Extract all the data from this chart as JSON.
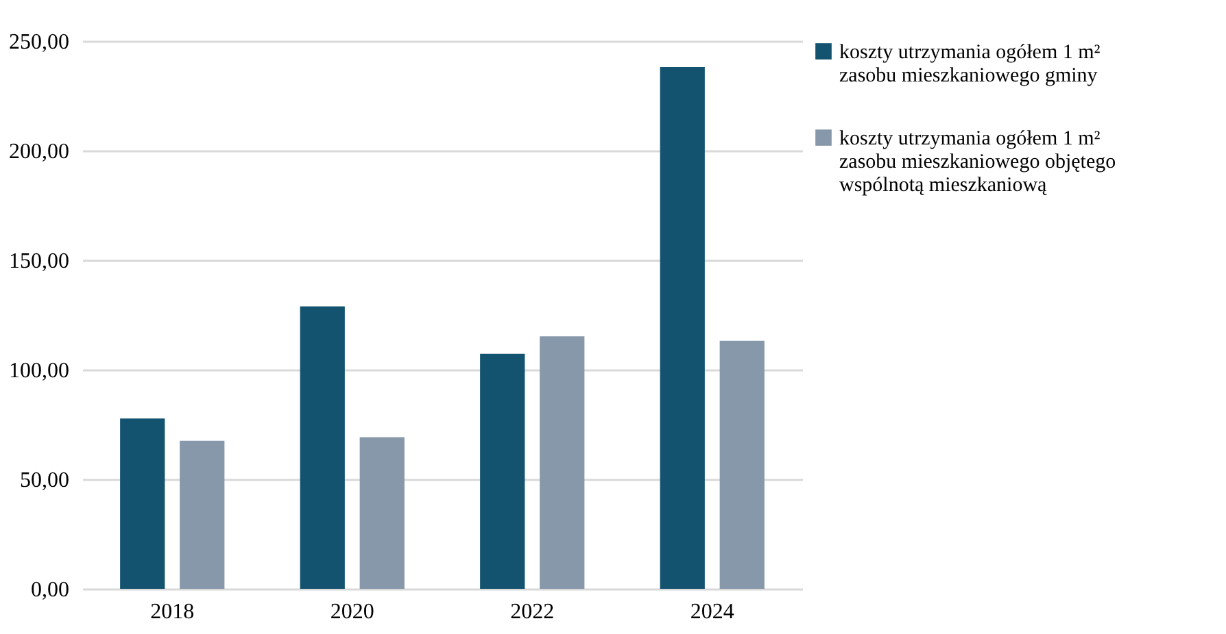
{
  "chart_data": {
    "type": "bar",
    "categories": [
      "2018",
      "2020",
      "2022",
      "2024"
    ],
    "series": [
      {
        "name": "koszty utrzymania ogółem 1 m² zasobu mieszkaniowego gminy",
        "color": "#13536f",
        "values": [
          77.7,
          128.9,
          107.3,
          238.1
        ]
      },
      {
        "name": "koszty utrzymania ogółem 1 m² zasobu mieszkaniowego objętego wspólnotą mieszkaniową",
        "color": "#8798aa",
        "values": [
          67.6,
          69.2,
          115.2,
          113.2
        ]
      }
    ],
    "ylim": [
      0,
      250
    ],
    "yticks": [
      {
        "value": 0,
        "label": "0,00"
      },
      {
        "value": 50,
        "label": "50,00"
      },
      {
        "value": 100,
        "label": "100,00"
      },
      {
        "value": 150,
        "label": "150,00"
      },
      {
        "value": 200,
        "label": "200,00"
      },
      {
        "value": 250,
        "label": "250,00"
      }
    ],
    "grid": "y",
    "legend": "right"
  }
}
